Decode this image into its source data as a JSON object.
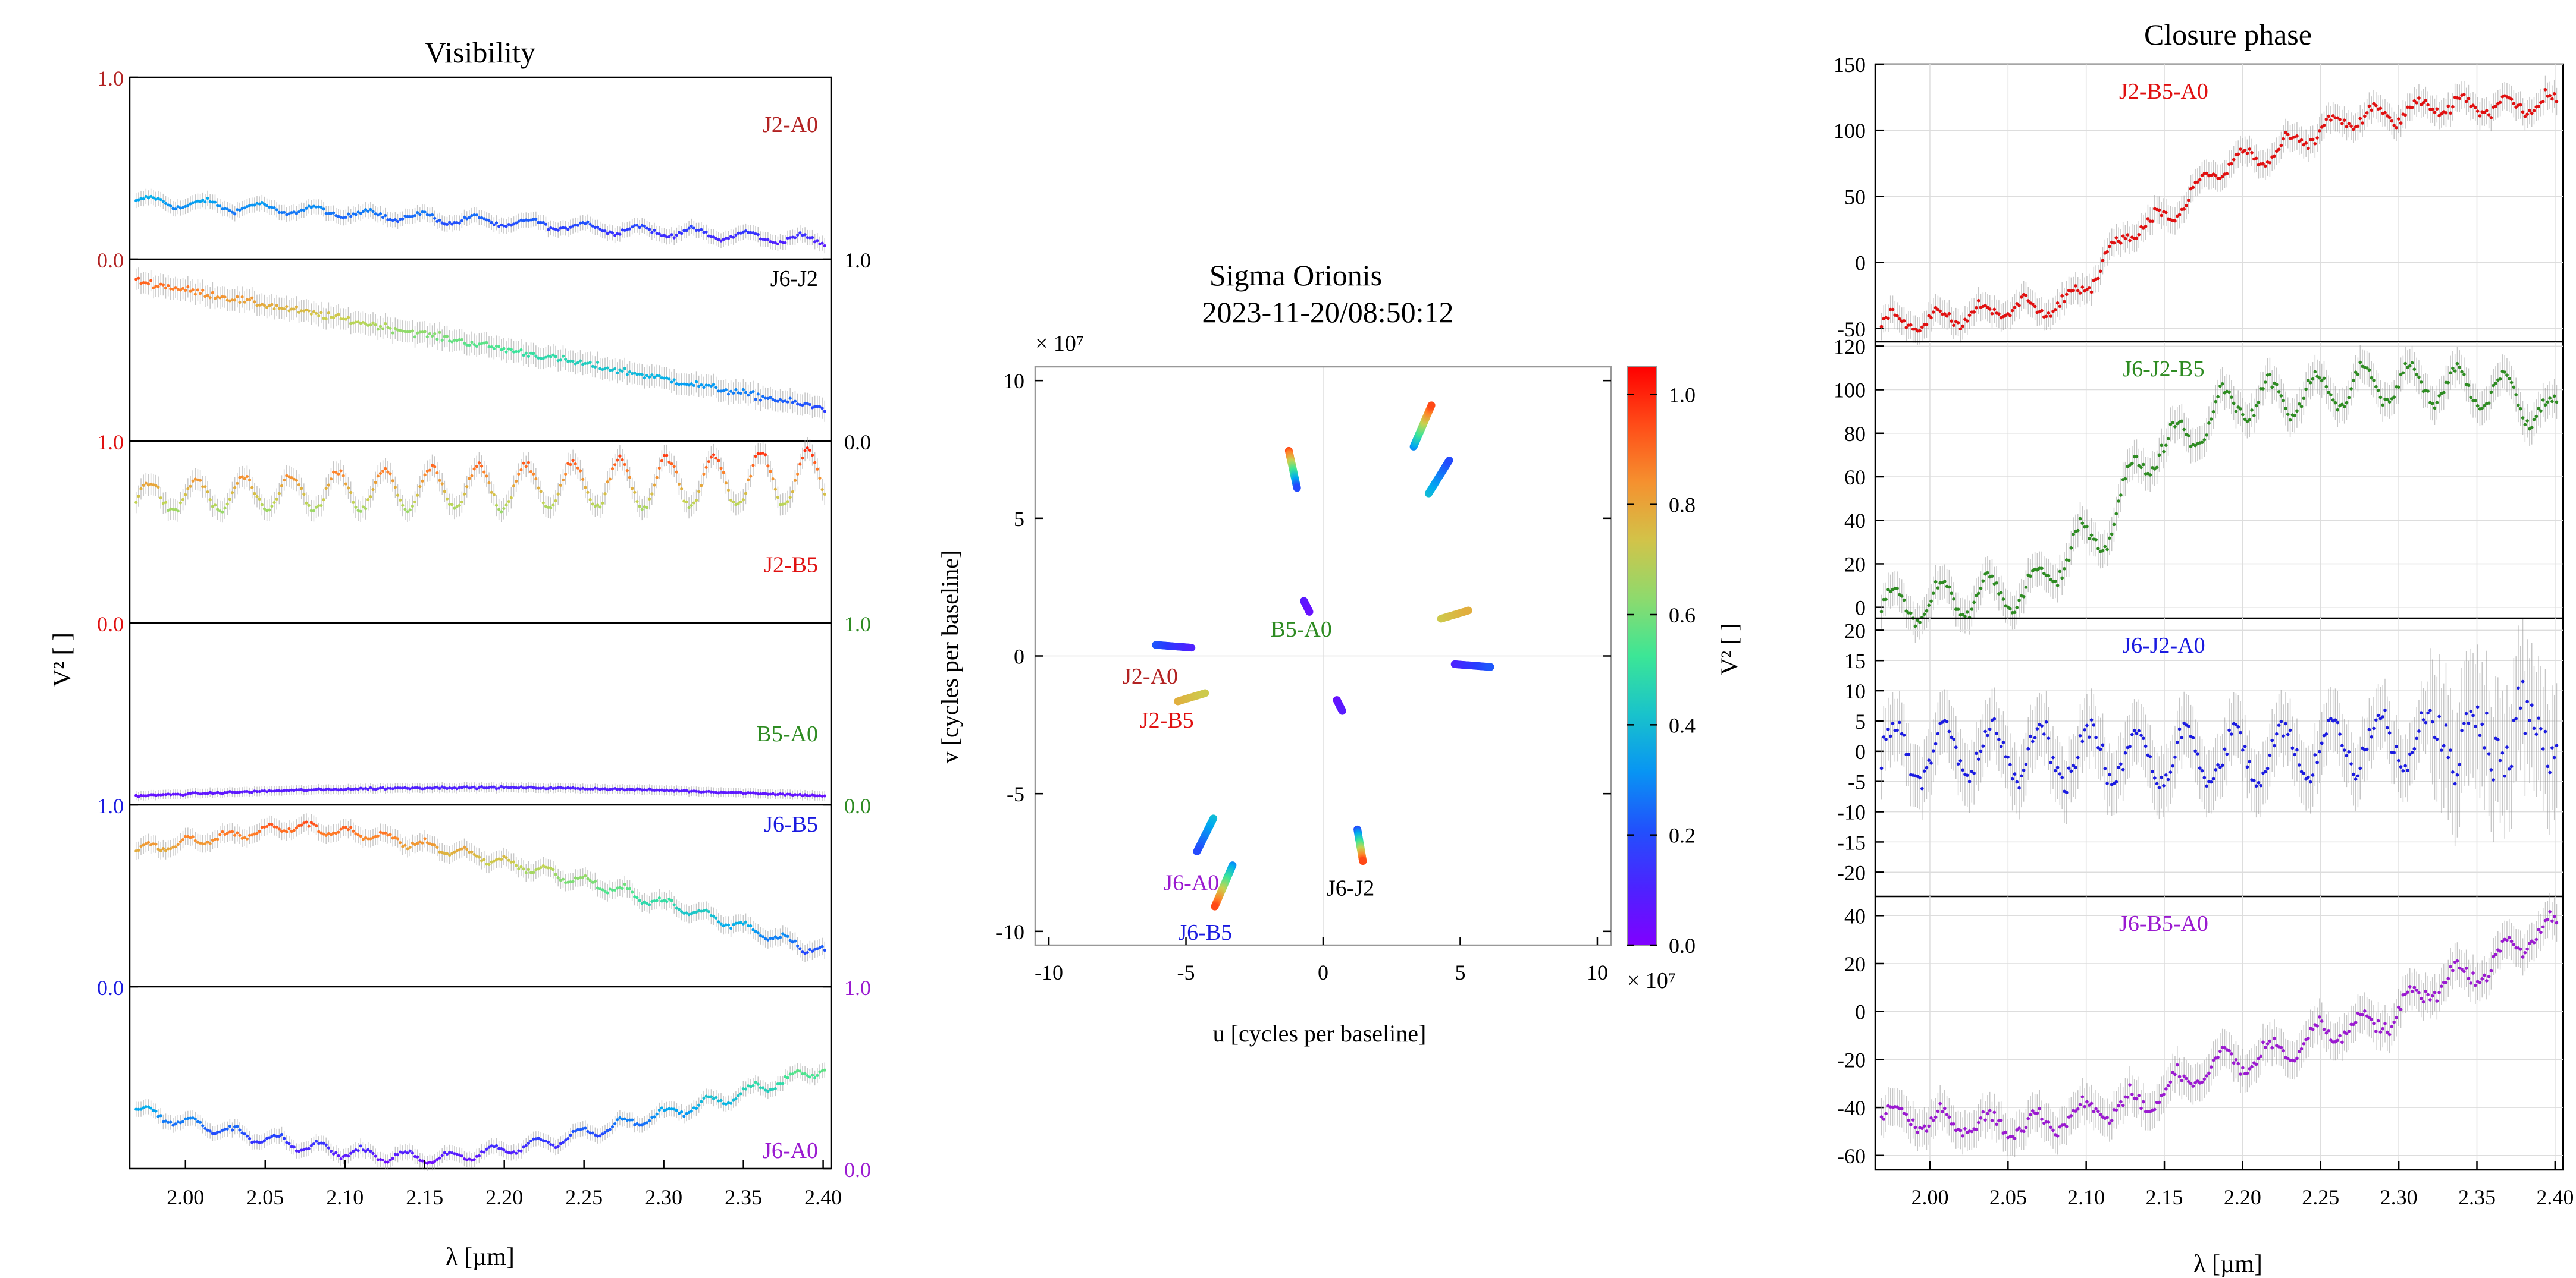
{
  "colors": {
    "J2-A0": "#b22222",
    "J2-B5": "#e01010",
    "J6-J2": "#000000",
    "B5-A0": "#2e8b22",
    "J6-B5": "#1a1ae0",
    "J6-A0": "#9a1ad0",
    "J6-J2-B5": "#2e8b22",
    "J2-B5-A0": "#e01010",
    "J6-J2-A0": "#1a1ae0",
    "J6-B5-A0": "#9a1ad0",
    "errorbar": "#9a9a9a"
  },
  "chart_data": [
    {
      "type": "scatter",
      "title": "Visibility",
      "xlabel": "λ [µm]",
      "ylabel": "V² [ ]",
      "xlim": [
        1.965,
        2.405
      ],
      "x_ticks": [
        "2.00",
        "2.05",
        "2.10",
        "2.15",
        "2.20",
        "2.25",
        "2.30",
        "2.35",
        "2.40"
      ],
      "colorscale": "rainbow V²",
      "panels": [
        {
          "baseline": "J2-A0",
          "axis_side": "left",
          "ylim": [
            0,
            1
          ],
          "tick_labels": [
            {
              "v": 1,
              "t": "1.0"
            },
            {
              "v": 0,
              "t": "0.0"
            }
          ],
          "mean_start": 0.32,
          "mean_end": 0.1,
          "osc_amp": 0.025,
          "osc_period": 0.034,
          "noise": 0.012
        },
        {
          "baseline": "J6-J2",
          "axis_side": "right",
          "ylim": [
            0,
            1
          ],
          "tick_labels": [
            {
              "v": 1,
              "t": "1.0"
            },
            {
              "v": 0,
              "t": "0.0"
            }
          ],
          "mean_start": 0.88,
          "mean_end": 0.18,
          "osc_amp": 0.0,
          "osc_period": 0.034,
          "noise": 0.02
        },
        {
          "baseline": "J2-B5",
          "axis_side": "left",
          "ylim": [
            0,
            1
          ],
          "tick_labels": [
            {
              "v": 1,
              "t": "1.0"
            },
            {
              "v": 0,
              "t": "0.0"
            }
          ],
          "mean_start": 0.69,
          "mean_end": 0.8,
          "osc_amp": 0.12,
          "osc_period": 0.0295,
          "noise": 0.02
        },
        {
          "baseline": "B5-A0",
          "axis_side": "right",
          "ylim": [
            0,
            1
          ],
          "tick_labels": [
            {
              "v": 1,
              "t": "1.0"
            },
            {
              "v": 0,
              "t": "0.0"
            }
          ],
          "mean_start": 0.05,
          "mean_end": 0.05,
          "osc_amp": 0.0,
          "osc_period": 0.034,
          "noise": 0.005,
          "bump": 0.05
        },
        {
          "baseline": "J6-B5",
          "axis_side": "left",
          "ylim": [
            0,
            1
          ],
          "tick_labels": [
            {
              "v": 1,
              "t": "1.0"
            },
            {
              "v": 0,
              "t": "0.0"
            }
          ],
          "profile": "hump",
          "peak": 0.88,
          "end": 0.19,
          "osc_amp": 0.025,
          "osc_period": 0.025,
          "noise": 0.015
        },
        {
          "baseline": "J6-A0",
          "axis_side": "right",
          "ylim": [
            0,
            1
          ],
          "tick_labels": [
            {
              "v": 1,
              "t": "1.0"
            },
            {
              "v": 0,
              "t": "0.0"
            }
          ],
          "profile": "valley",
          "start": 0.32,
          "min": 0.06,
          "end": 0.55,
          "osc_amp": 0.03,
          "osc_period": 0.027,
          "noise": 0.012
        }
      ]
    },
    {
      "type": "scatter",
      "title": "Sigma Orionis",
      "subtitle": "2023-11-20/08:50:12",
      "xlabel": "u [cycles per baseline]",
      "ylabel": "v [cycles per baseline]",
      "xlim": [
        -10.5,
        10.5
      ],
      "ylim": [
        -10.5,
        10.5
      ],
      "scale_label": "× 10⁷",
      "x_ticks": [
        {
          "v": -10,
          "t": "-10"
        },
        {
          "v": -5,
          "t": "-5"
        },
        {
          "v": 0,
          "t": "0"
        },
        {
          "v": 5,
          "t": "5"
        },
        {
          "v": 10,
          "t": "10"
        }
      ],
      "y_ticks": [
        {
          "v": 10,
          "t": "10"
        },
        {
          "v": 5,
          "t": "5"
        },
        {
          "v": 0,
          "t": "0"
        },
        {
          "v": -5,
          "t": "-5"
        },
        {
          "v": -10,
          "t": "-10"
        }
      ],
      "colorbar": {
        "label": "V² [ ]",
        "range": [
          0,
          1.05
        ],
        "ticks": [
          {
            "v": 0,
            "t": "0.0"
          },
          {
            "v": 0.2,
            "t": "0.2"
          },
          {
            "v": 0.4,
            "t": "0.4"
          },
          {
            "v": 0.6,
            "t": "0.6"
          },
          {
            "v": 0.8,
            "t": "0.8"
          },
          {
            "v": 1.0,
            "t": "1.0"
          }
        ]
      },
      "tracks": [
        {
          "u1": 3.3,
          "v1": 7.6,
          "u2": 3.95,
          "v2": 9.1,
          "c1": 0.3,
          "c2": 0.95
        },
        {
          "u1": 3.85,
          "v1": 5.9,
          "u2": 4.6,
          "v2": 7.1,
          "c1": 0.4,
          "c2": 0.2
        },
        {
          "u1": -1.25,
          "v1": 7.45,
          "u2": -0.95,
          "v2": 6.1,
          "c1": 0.95,
          "c2": 0.2
        },
        {
          "u1": 4.3,
          "v1": 1.35,
          "u2": 5.3,
          "v2": 1.65,
          "c1": 0.72,
          "c2": 0.78
        },
        {
          "u1": 4.8,
          "v1": -0.3,
          "u2": 6.1,
          "v2": -0.4,
          "c1": 0.1,
          "c2": 0.22
        },
        {
          "u1": -6.1,
          "v1": 0.4,
          "u2": -4.8,
          "v2": 0.3,
          "c1": 0.22,
          "c2": 0.1
        },
        {
          "u1": -5.3,
          "v1": -1.65,
          "u2": -4.3,
          "v2": -1.35,
          "c1": 0.78,
          "c2": 0.72
        },
        {
          "u1": -0.7,
          "v1": 2.0,
          "u2": -0.5,
          "v2": 1.6,
          "c1": 0.08,
          "c2": 0.05
        },
        {
          "u1": 0.5,
          "v1": -1.6,
          "u2": 0.7,
          "v2": -2.0,
          "c1": 0.05,
          "c2": 0.08
        },
        {
          "u1": 1.25,
          "v1": -6.3,
          "u2": 1.45,
          "v2": -7.45,
          "c1": 0.2,
          "c2": 0.95
        },
        {
          "u1": -4.0,
          "v1": -5.9,
          "u2": -4.6,
          "v2": -7.1,
          "c1": 0.4,
          "c2": 0.2
        },
        {
          "u1": -3.3,
          "v1": -7.6,
          "u2": -3.95,
          "v2": -9.1,
          "c1": 0.3,
          "c2": 0.95
        }
      ],
      "labels": [
        {
          "text": "B5-A0",
          "u": -0.8,
          "v": 1.0,
          "key": "B5-A0"
        },
        {
          "text": "J2-A0",
          "u": -6.3,
          "v": -0.7,
          "key": "J2-A0"
        },
        {
          "text": "J2-B5",
          "u": -5.7,
          "v": -2.3,
          "key": "J2-B5"
        },
        {
          "text": "J6-J2",
          "u": 1.0,
          "v": -8.4,
          "key": "J6-J2"
        },
        {
          "text": "J6-A0",
          "u": -4.8,
          "v": -8.2,
          "key": "J6-A0"
        },
        {
          "text": "J6-B5",
          "u": -4.3,
          "v": -10.0,
          "key": "J6-B5"
        }
      ]
    },
    {
      "type": "scatter",
      "title": "Closure phase",
      "xlabel": "λ [µm]",
      "xlim": [
        1.965,
        2.405
      ],
      "x_ticks": [
        "2.00",
        "2.05",
        "2.10",
        "2.15",
        "2.20",
        "2.25",
        "2.30",
        "2.35",
        "2.40"
      ],
      "panels": [
        {
          "triplet": "J2-B5-A0",
          "ylim": [
            -60,
            150
          ],
          "y_ticks": [
            {
              "v": 150,
              "t": "150"
            },
            {
              "v": 100,
              "t": "100"
            },
            {
              "v": 50,
              "t": "50"
            },
            {
              "v": 0,
              "t": "0"
            },
            {
              "v": -50,
              "t": "-50"
            }
          ],
          "knots": [
            [
              1.97,
              -45
            ],
            [
              2.08,
              -33
            ],
            [
              2.14,
              30
            ],
            [
              2.2,
              78
            ],
            [
              2.28,
              110
            ],
            [
              2.33,
              118
            ],
            [
              2.4,
              120
            ]
          ],
          "osc_amp": 7,
          "osc_period": 0.028,
          "noise": 4
        },
        {
          "triplet": "J6-J2-B5",
          "ylim": [
            -5,
            122
          ],
          "y_ticks": [
            {
              "v": 120,
              "t": "120"
            },
            {
              "v": 100,
              "t": "100"
            },
            {
              "v": 80,
              "t": "80"
            },
            {
              "v": 60,
              "t": "60"
            },
            {
              "v": 40,
              "t": "40"
            },
            {
              "v": 20,
              "t": "20"
            },
            {
              "v": 0,
              "t": "0"
            }
          ],
          "knots": [
            [
              1.97,
              0
            ],
            [
              2.06,
              7
            ],
            [
              2.1,
              30
            ],
            [
              2.15,
              75
            ],
            [
              2.2,
              95
            ],
            [
              2.3,
              103
            ],
            [
              2.36,
              100
            ],
            [
              2.4,
              88
            ]
          ],
          "osc_amp": 9,
          "osc_period": 0.03,
          "noise": 3
        },
        {
          "triplet": "J6-J2-A0",
          "ylim": [
            -24,
            22
          ],
          "y_ticks": [
            {
              "v": 20,
              "t": "20"
            },
            {
              "v": 15,
              "t": "15"
            },
            {
              "v": 10,
              "t": "10"
            },
            {
              "v": 5,
              "t": "5"
            },
            {
              "v": 0,
              "t": "0"
            },
            {
              "v": -5,
              "t": "-5"
            },
            {
              "v": -10,
              "t": "-10"
            },
            {
              "v": -15,
              "t": "-15"
            },
            {
              "v": -20,
              "t": "-20"
            }
          ],
          "knots": [
            [
              1.97,
              0
            ],
            [
              2.2,
              -1
            ],
            [
              2.3,
              2
            ],
            [
              2.4,
              3
            ]
          ],
          "osc_amp": 4.5,
          "osc_period": 0.031,
          "noise": 2
        },
        {
          "triplet": "J6-B5-A0",
          "ylim": [
            -66,
            48
          ],
          "y_ticks": [
            {
              "v": 40,
              "t": "40"
            },
            {
              "v": 20,
              "t": "20"
            },
            {
              "v": 0,
              "t": "0"
            },
            {
              "v": -20,
              "t": "-20"
            },
            {
              "v": -40,
              "t": "-40"
            },
            {
              "v": -60,
              "t": "-60"
            }
          ],
          "knots": [
            [
              1.97,
              -44
            ],
            [
              2.05,
              -48
            ],
            [
              2.12,
              -40
            ],
            [
              2.2,
              -20
            ],
            [
              2.28,
              -5
            ],
            [
              2.34,
              15
            ],
            [
              2.4,
              35
            ]
          ],
          "osc_amp": 5,
          "osc_period": 0.03,
          "noise": 3
        }
      ]
    }
  ]
}
